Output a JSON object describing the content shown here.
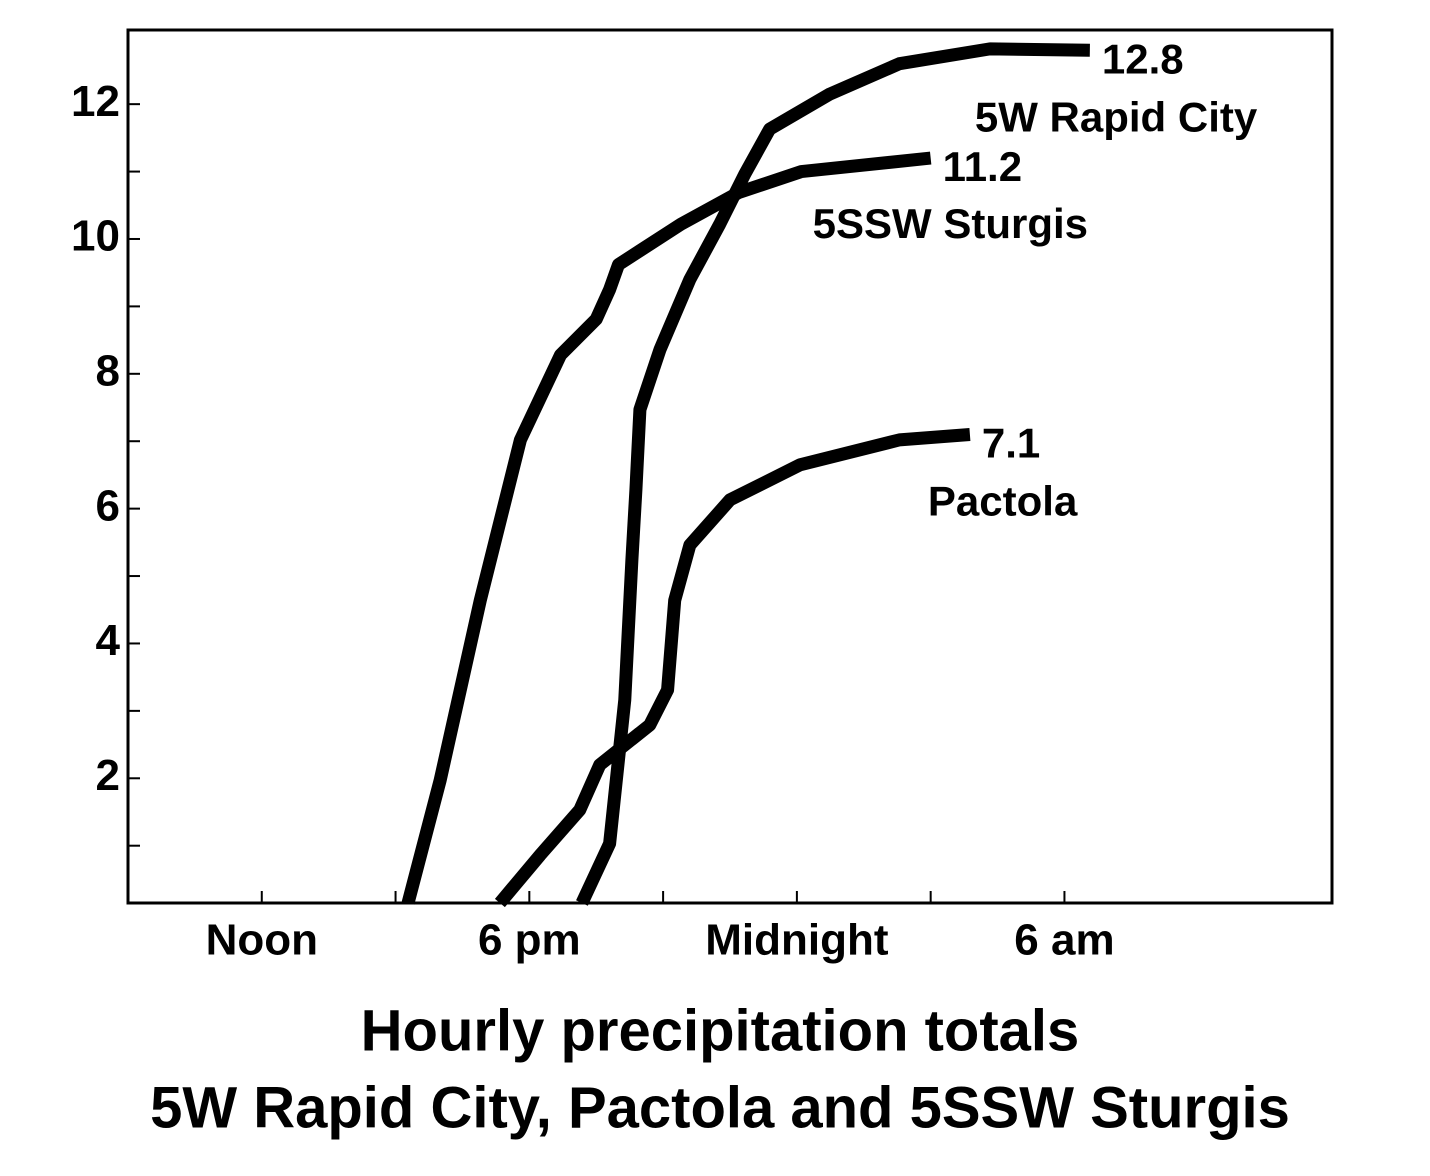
{
  "chart_data": {
    "type": "line",
    "title": [
      "Hourly precipitation totals",
      "5W Rapid City, Pactola and 5SSW Sturgis"
    ],
    "xlim": [
      9,
      36
    ],
    "xticks": [
      {
        "value": 12,
        "label": "Noon"
      },
      {
        "value": 18,
        "label": "6 pm"
      },
      {
        "value": 24,
        "label": "Midnight"
      },
      {
        "value": 30,
        "label": "6 am"
      }
    ],
    "xminorticks": [
      15,
      21,
      27
    ],
    "ylim": [
      0.15,
      13.1
    ],
    "yticks": [
      2,
      4,
      6,
      8,
      10,
      12
    ],
    "yminorticks": [
      1,
      3,
      5,
      7,
      9,
      11
    ],
    "series": [
      {
        "name": "5W Rapid City",
        "color": "#000000",
        "x": [
          19.18,
          19.8,
          20.14,
          20.3,
          20.39,
          20.48,
          20.93,
          21.6,
          22.27,
          22.83,
          23.39,
          24.74,
          26.3,
          28.33,
          30.57
        ],
        "values": [
          0.15,
          1.03,
          3.16,
          5.24,
          6.28,
          7.47,
          8.36,
          9.4,
          10.22,
          10.96,
          11.63,
          12.15,
          12.6,
          12.82,
          12.8
        ]
      },
      {
        "name": "5SSW Sturgis",
        "color": "#000000",
        "x": [
          15.28,
          16.0,
          16.9,
          17.8,
          18.7,
          19.5,
          19.8,
          20.0,
          21.4,
          22.7,
          24.1,
          27.0
        ],
        "values": [
          0.15,
          1.97,
          4.64,
          7.02,
          8.28,
          8.81,
          9.25,
          9.62,
          10.22,
          10.69,
          11.0,
          11.2
        ]
      },
      {
        "name": "Pactola",
        "color": "#000000",
        "x": [
          17.34,
          18.24,
          19.13,
          19.58,
          20.7,
          21.1,
          21.26,
          21.6,
          22.5,
          24.07,
          26.3,
          27.88
        ],
        "values": [
          0.15,
          0.86,
          1.53,
          2.2,
          2.79,
          3.31,
          4.64,
          5.46,
          6.13,
          6.65,
          7.02,
          7.1
        ]
      }
    ]
  }
}
